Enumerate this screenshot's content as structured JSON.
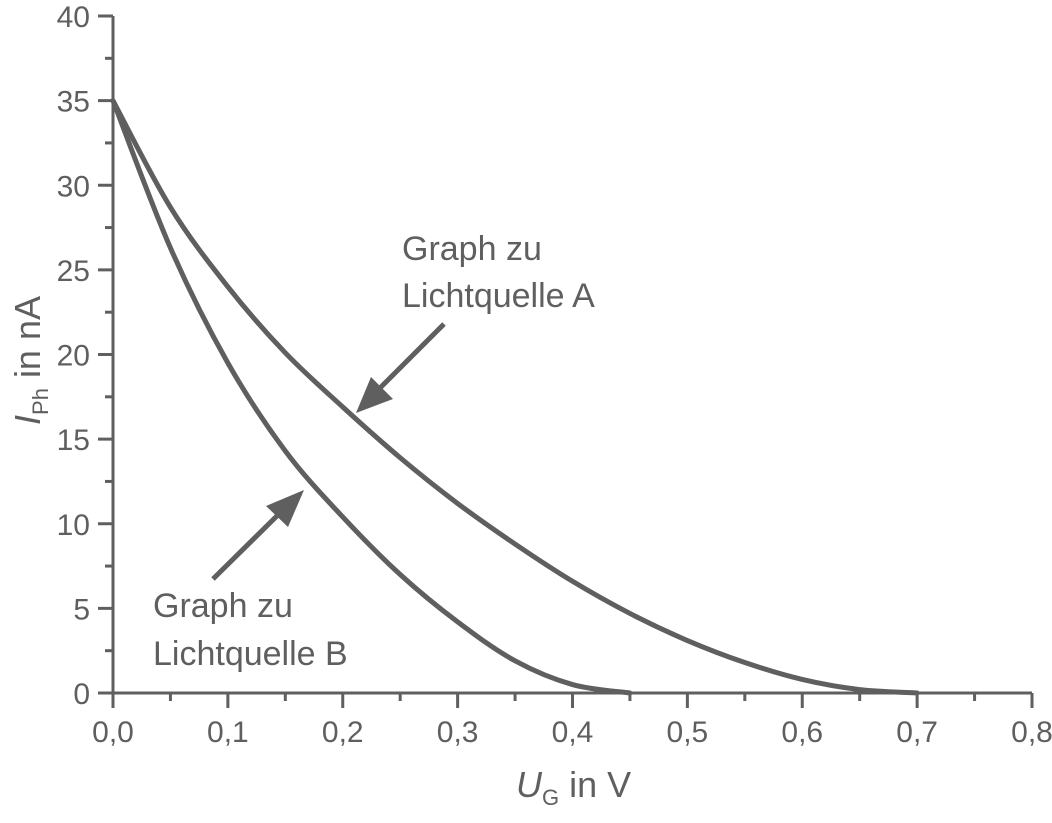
{
  "chart_data": {
    "type": "line",
    "title": "",
    "xlabel": "U_G in V",
    "xlabel_main": "U",
    "xlabel_sub": "G",
    "xlabel_rest": " in V",
    "ylabel": "I_Ph in nA",
    "ylabel_main": "I",
    "ylabel_sub": "Ph",
    "ylabel_rest": " in nA",
    "xlim": [
      0,
      0.8
    ],
    "ylim": [
      0,
      40
    ],
    "x_ticks": [
      "0,0",
      "0,1",
      "0,2",
      "0,3",
      "0,4",
      "0,5",
      "0,6",
      "0,7",
      "0,8"
    ],
    "y_ticks": [
      "0",
      "5",
      "10",
      "15",
      "20",
      "25",
      "30",
      "35",
      "40"
    ],
    "grid": false,
    "series": [
      {
        "name": "Graph zu Lichtquelle A",
        "x": [
          0.0,
          0.05,
          0.1,
          0.15,
          0.2,
          0.25,
          0.3,
          0.35,
          0.4,
          0.45,
          0.5,
          0.55,
          0.6,
          0.65,
          0.7
        ],
        "y": [
          35.0,
          28.7,
          24.0,
          20.1,
          16.9,
          13.9,
          11.2,
          8.8,
          6.6,
          4.7,
          3.1,
          1.8,
          0.8,
          0.2,
          0.0
        ]
      },
      {
        "name": "Graph zu Lichtquelle B",
        "x": [
          0.0,
          0.05,
          0.1,
          0.15,
          0.2,
          0.25,
          0.3,
          0.35,
          0.4,
          0.45
        ],
        "y": [
          35.0,
          26.3,
          19.5,
          14.3,
          10.4,
          7.0,
          4.2,
          1.9,
          0.5,
          0.0
        ]
      }
    ],
    "annotations": [
      {
        "line1": "Graph zu",
        "line2": "Lichtquelle A",
        "points_to": "series A near U=0,21 V"
      },
      {
        "line1": "Graph zu",
        "line2": "Lichtquelle B",
        "points_to": "series B near U=0,17 V"
      }
    ],
    "color": "#5f5f5f"
  }
}
